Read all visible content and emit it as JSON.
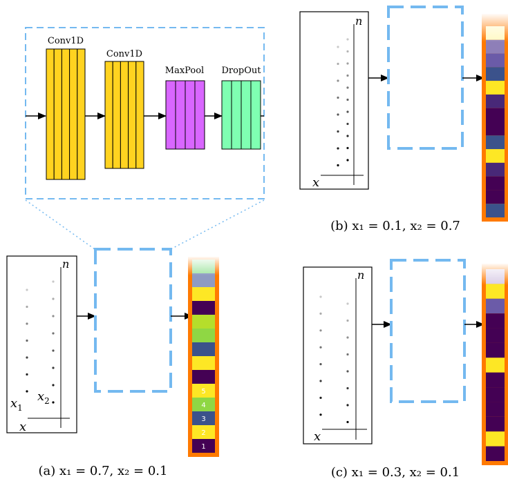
{
  "network": {
    "layers": [
      {
        "label": "Conv1D",
        "color": "#FFD320",
        "bands": 5
      },
      {
        "label": "Conv1D",
        "color": "#FFD320",
        "bands": 5
      },
      {
        "label": "MaxPool",
        "color": "#D966FF",
        "bands": 4
      },
      {
        "label": "DropOut",
        "color": "#7FFFB2",
        "bands": 4
      }
    ]
  },
  "axes": {
    "x_label": "x",
    "n_label": "n",
    "x1_label": "x",
    "x1_sub": "1",
    "x2_label": "x",
    "x2_sub": "2"
  },
  "panels": {
    "a": {
      "caption": "(a) x₁ = 0.7, x₂ = 0.1",
      "output_cells": [
        "#A6E6A6",
        "#8F9BC2",
        "#FDE725",
        "#440154",
        "#B5DE2B",
        "#8FD744",
        "#3B528B",
        "#FDE725",
        "#440154"
      ],
      "legend_cells": [
        {
          "value": "5",
          "color": "#FDE725"
        },
        {
          "value": "4",
          "color": "#8FD744"
        },
        {
          "value": "3",
          "color": "#3B528B"
        },
        {
          "value": "2",
          "color": "#FDE725"
        },
        {
          "value": "1",
          "color": "#440154"
        }
      ]
    },
    "b": {
      "caption": "(b) x₁ = 0.1, x₂ = 0.7",
      "output_cells": [
        "#FFF9C4",
        "#8E7FB8",
        "#6B5BA8",
        "#3B528B",
        "#FDE725",
        "#482878",
        "#440154",
        "#440154",
        "#3B528B",
        "#FDE725",
        "#482878",
        "#440154",
        "#440154",
        "#3B528B"
      ]
    },
    "c": {
      "caption": "(c) x₁ = 0.3, x₂ = 0.1",
      "output_cells": [
        "#D9CCE6",
        "#FDE725",
        "#6B5BA8",
        "#440154",
        "#440154",
        "#440154",
        "#FDE725",
        "#440154",
        "#440154",
        "#440154",
        "#440154",
        "#FDE725",
        "#440154"
      ]
    }
  },
  "colors": {
    "dashed_box": "#74B9F0",
    "orange_frame": "#FF7A00",
    "arrow": "#000000"
  }
}
